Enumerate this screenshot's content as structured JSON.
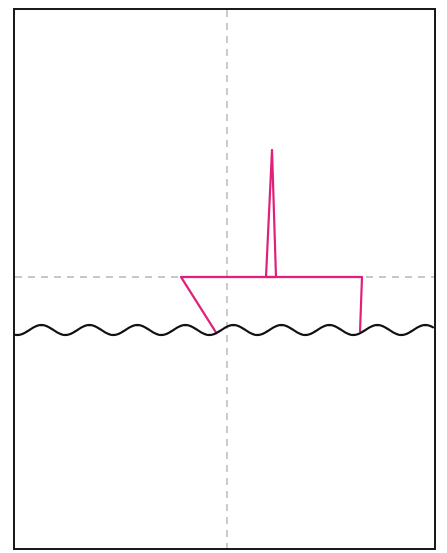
{
  "colors": {
    "background": "#ffffff",
    "frame": "#1a1a1a",
    "guide": "#a8a8a8",
    "boat": "#e0207a",
    "water": "#111111"
  }
}
